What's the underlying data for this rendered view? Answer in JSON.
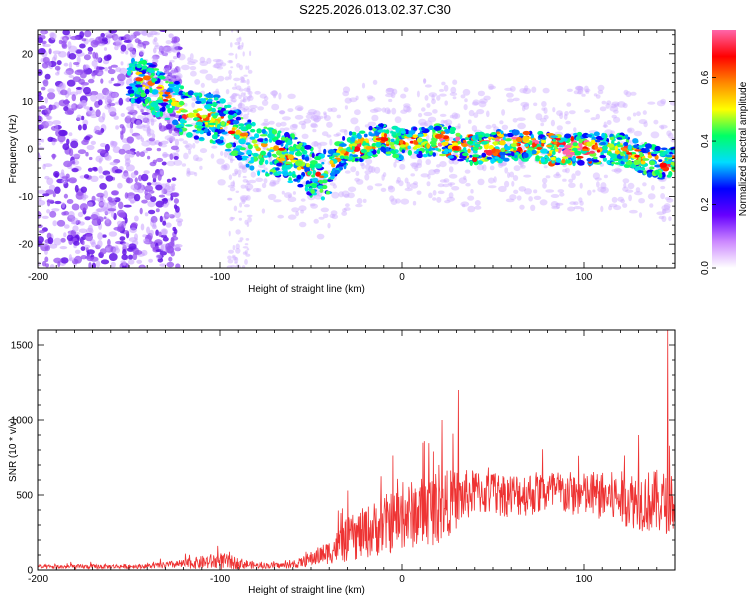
{
  "title": "S225.2026.013.02.37.C30",
  "chart_data": [
    {
      "type": "heatmap",
      "xlabel": "Height of straight line (km)",
      "ylabel": "Frequency (Hz)",
      "xlim": [
        -200,
        150
      ],
      "ylim": [
        -25,
        25
      ],
      "xticks": [
        -200,
        -100,
        0,
        100
      ],
      "yticks": [
        -20,
        -10,
        0,
        10,
        20
      ],
      "colorbar": {
        "label": "Normalized spectral amplitude",
        "range": [
          0,
          0.75
        ],
        "ticks": [
          0.0,
          0.2,
          0.4,
          0.6
        ],
        "colors": [
          "#ffffff",
          "#cc88ff",
          "#6600ff",
          "#0000ff",
          "#00ddff",
          "#00ff66",
          "#ffff00",
          "#ff8800",
          "#ff0000",
          "#ff66aa"
        ]
      },
      "ridge": [
        {
          "x": -145,
          "f": 15
        },
        {
          "x": -120,
          "f": 8
        },
        {
          "x": -100,
          "f": 6
        },
        {
          "x": -80,
          "f": 0
        },
        {
          "x": -60,
          "f": -2
        },
        {
          "x": -45,
          "f": -6
        },
        {
          "x": -30,
          "f": 0
        },
        {
          "x": -10,
          "f": 2
        },
        {
          "x": 0,
          "f": 1
        },
        {
          "x": 20,
          "f": 2
        },
        {
          "x": 40,
          "f": 0
        },
        {
          "x": 60,
          "f": 1
        },
        {
          "x": 80,
          "f": 0
        },
        {
          "x": 100,
          "f": 0
        },
        {
          "x": 120,
          "f": 0
        },
        {
          "x": 140,
          "f": -3
        }
      ]
    },
    {
      "type": "line",
      "xlabel": "Height of straight line (km)",
      "ylabel": "SNR (10 * v/v)",
      "xlim": [
        -200,
        150
      ],
      "ylim": [
        0,
        1600
      ],
      "xticks": [
        -200,
        -100,
        0,
        100
      ],
      "yticks": [
        0,
        500,
        1000,
        1500
      ],
      "line_color": "#ee3333",
      "envelope": [
        {
          "x": -200,
          "mean": 20,
          "spread": 15
        },
        {
          "x": -140,
          "mean": 25,
          "spread": 15
        },
        {
          "x": -120,
          "mean": 40,
          "spread": 30
        },
        {
          "x": -100,
          "mean": 60,
          "spread": 60
        },
        {
          "x": -80,
          "mean": 30,
          "spread": 20
        },
        {
          "x": -60,
          "mean": 30,
          "spread": 20
        },
        {
          "x": -40,
          "mean": 120,
          "spread": 80
        },
        {
          "x": -30,
          "mean": 200,
          "spread": 150
        },
        {
          "x": -10,
          "mean": 300,
          "spread": 200
        },
        {
          "x": 0,
          "mean": 350,
          "spread": 220
        },
        {
          "x": 20,
          "mean": 420,
          "spread": 250
        },
        {
          "x": 40,
          "mean": 520,
          "spread": 150
        },
        {
          "x": 60,
          "mean": 500,
          "spread": 150
        },
        {
          "x": 80,
          "mean": 520,
          "spread": 150
        },
        {
          "x": 100,
          "mean": 500,
          "spread": 150
        },
        {
          "x": 120,
          "mean": 480,
          "spread": 180
        },
        {
          "x": 140,
          "mean": 450,
          "spread": 220
        },
        {
          "x": 150,
          "mean": 450,
          "spread": 200
        }
      ],
      "peaks": [
        {
          "x": 31,
          "y": 1200
        },
        {
          "x": 146,
          "y": 1600
        },
        {
          "x": 22,
          "y": 1000
        },
        {
          "x": 130,
          "y": 900
        }
      ]
    }
  ]
}
